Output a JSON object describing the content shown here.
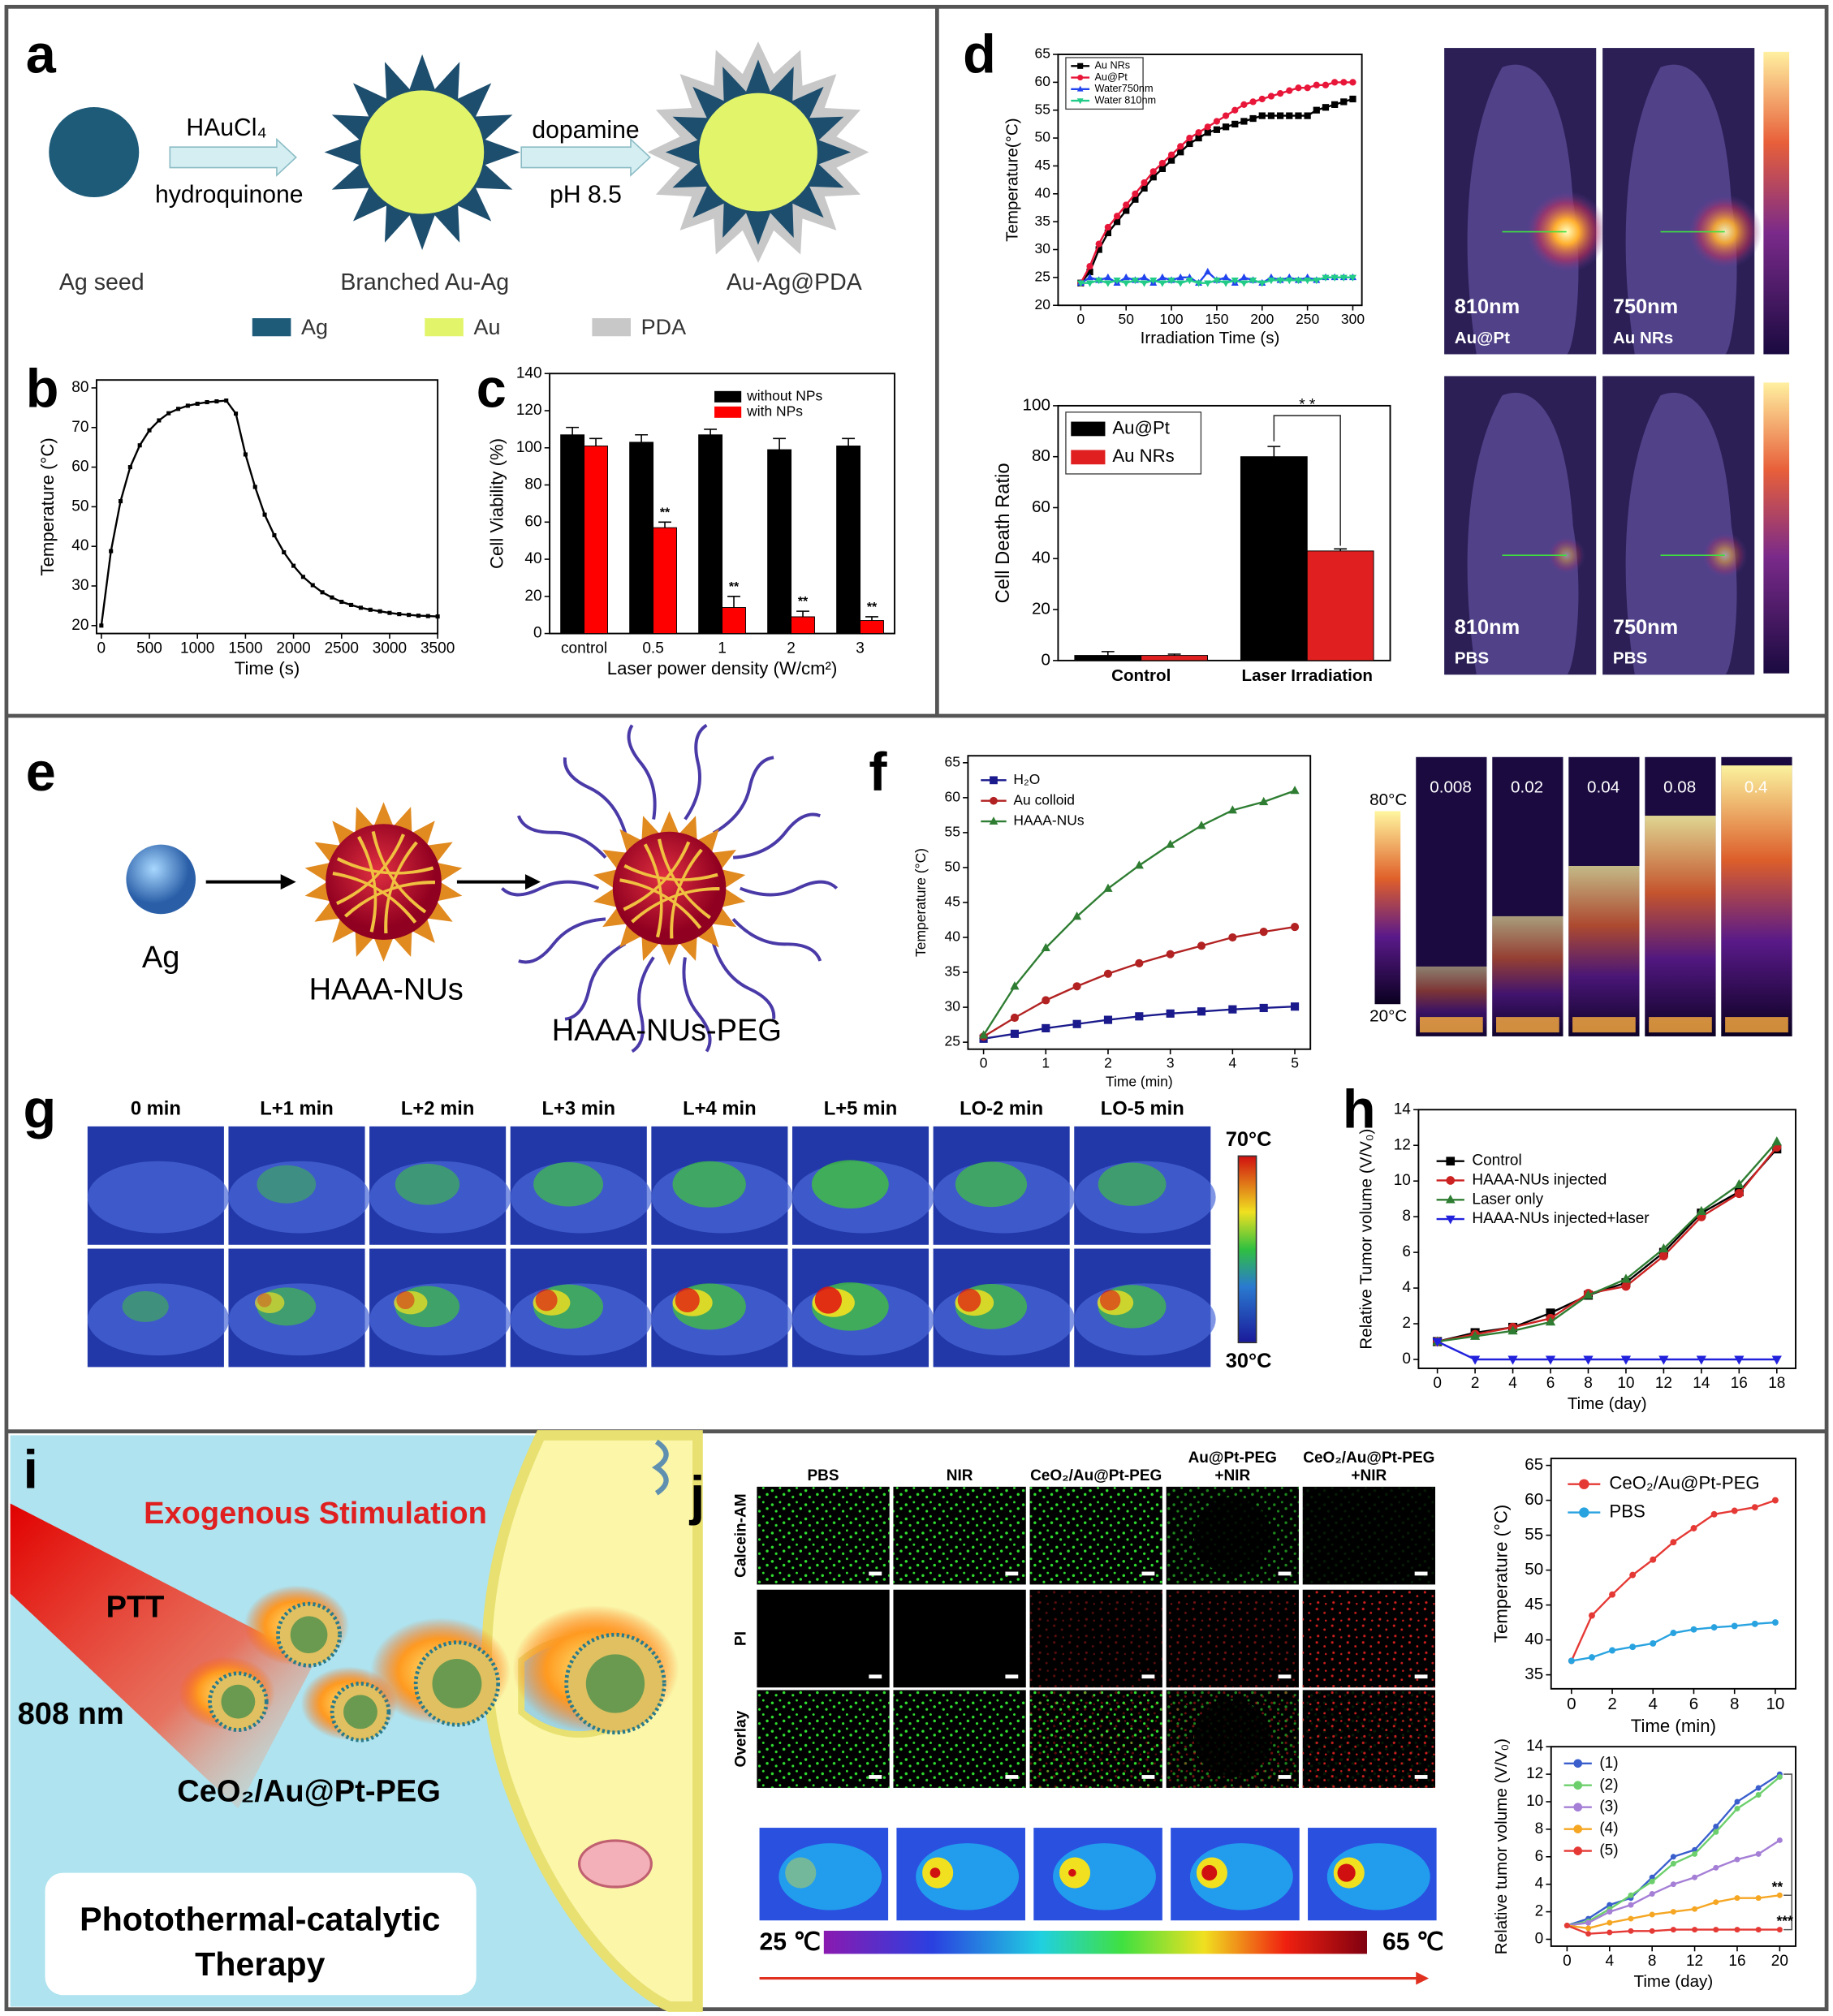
{
  "panel_labels": [
    "a",
    "b",
    "c",
    "d",
    "e",
    "f",
    "g",
    "h",
    "i",
    "j"
  ],
  "scheme_a": {
    "steps": [
      {
        "reagent": "HAuCl₄",
        "condition": "hydroquinone"
      },
      {
        "reagent": "dopamine",
        "condition": "pH 8.5"
      }
    ],
    "stages": [
      "Ag seed",
      "Branched Au-Ag",
      "Au-Ag@PDA"
    ],
    "legend": [
      "Ag",
      "Au",
      "PDA"
    ]
  },
  "scheme_e": {
    "stages": [
      "Ag",
      "HAAA-NUs",
      "HAAA-NUs-PEG"
    ]
  },
  "images_d": [
    {
      "wavelength": "810nm",
      "sample": "Au@Pt"
    },
    {
      "wavelength": "750nm",
      "sample": "Au NRs"
    },
    {
      "wavelength": "810nm",
      "sample": "PBS"
    },
    {
      "wavelength": "750nm",
      "sample": "PBS"
    }
  ],
  "images_f": {
    "concentrations": [
      "0.008",
      "0.02",
      "0.04",
      "0.08",
      "0.4"
    ],
    "scale_max": "80°C",
    "scale_min": "20°C"
  },
  "images_g": {
    "times": [
      "0 min",
      "L+1 min",
      "L+2 min",
      "L+3 min",
      "L+4 min",
      "L+5 min",
      "LO-2 min",
      "LO-5 min"
    ],
    "scale_max": "70°C",
    "scale_min": "30°C"
  },
  "scheme_i": {
    "title": "Exogenous Stimulation",
    "mode": "PTT",
    "wavelength": "808 nm",
    "agent": "CeO₂/Au@Pt-PEG",
    "caption": [
      "Photothermal-catalytic",
      "Therapy"
    ]
  },
  "images_j": {
    "groups": [
      [
        "PBS"
      ],
      [
        "NIR"
      ],
      [
        "CeO₂/Au@Pt-PEG"
      ],
      [
        "Au@Pt-PEG",
        "+NIR"
      ],
      [
        "CeO₂/Au@Pt-PEG",
        "+NIR"
      ]
    ],
    "stains": [
      "Calcein-AM",
      "PI",
      "Overlay"
    ],
    "scale_min": "25 ℃",
    "scale_max": "65 ℃"
  },
  "chart_data": [
    {
      "type": "line",
      "ylabel": "Temperature (°C)",
      "xlabel": "Time (s)",
      "x": [
        0,
        100,
        200,
        300,
        400,
        500,
        600,
        700,
        800,
        900,
        1000,
        1100,
        1200,
        1300,
        1400,
        1500,
        1600,
        1700,
        1800,
        1900,
        2000,
        2100,
        2200,
        2300,
        2400,
        2500,
        2600,
        2700,
        2800,
        2900,
        3000,
        3100,
        3200,
        3300,
        3400,
        3500
      ],
      "xlim": [
        -50,
        3500
      ],
      "xticks": [
        0,
        500,
        1000,
        1500,
        2000,
        2500,
        3000,
        3500
      ],
      "ylim": [
        18,
        82
      ],
      "yticks": [
        20,
        30,
        40,
        50,
        60,
        70,
        80
      ],
      "series": [
        {
          "color": "#000000",
          "marker": "square",
          "values": [
            20,
            38.8,
            51.4,
            60,
            65.5,
            69.3,
            71.8,
            73.6,
            74.7,
            75.5,
            76,
            76.4,
            76.6,
            76.8,
            73.5,
            63.2,
            55,
            48,
            42.8,
            38.5,
            35.1,
            32.3,
            30.2,
            28.4,
            27.1,
            26,
            25.2,
            24.5,
            24,
            23.6,
            23.2,
            22.9,
            22.7,
            22.5,
            22.4,
            22.3
          ]
        }
      ]
    },
    {
      "type": "bar",
      "ylabel": "Cell Viability (%)",
      "xlabel": "Laser power density (W/cm²)",
      "categories": [
        "control",
        "0.5",
        "1",
        "2",
        "3"
      ],
      "ylim": [
        0,
        140
      ],
      "yticks": [
        0,
        20,
        40,
        60,
        80,
        100,
        120,
        140
      ],
      "legend": "top-right",
      "series": [
        {
          "name": "without NPs",
          "color": "#000000",
          "values": [
            107,
            103,
            107,
            99,
            101
          ],
          "errors": [
            4,
            4,
            3,
            6,
            4
          ]
        },
        {
          "name": "with NPs",
          "color": "#ff0000",
          "values": [
            101,
            57,
            14,
            9,
            7
          ],
          "errors": [
            4,
            3,
            6,
            3,
            2
          ],
          "annotations": [
            null,
            "**",
            "**",
            "**",
            "**"
          ]
        }
      ]
    },
    {
      "type": "line",
      "ylabel": "Temperature(°C)",
      "xlabel": "Irradiation Time (s)",
      "x": [
        0,
        10,
        20,
        30,
        40,
        50,
        60,
        70,
        80,
        90,
        100,
        110,
        120,
        130,
        140,
        150,
        160,
        170,
        180,
        190,
        200,
        210,
        220,
        230,
        240,
        250,
        260,
        270,
        280,
        290,
        300
      ],
      "xlim": [
        -25,
        310
      ],
      "xticks": [
        0,
        50,
        100,
        150,
        200,
        250,
        300
      ],
      "ylim": [
        20,
        65
      ],
      "yticks": [
        20,
        25,
        30,
        35,
        40,
        45,
        50,
        55,
        60,
        65
      ],
      "legend": "top-left",
      "series": [
        {
          "name": "Au NRs",
          "color": "#000000",
          "marker": "square",
          "values": [
            24,
            26,
            30,
            33,
            35,
            37,
            39,
            41,
            43,
            44.5,
            46,
            47.5,
            49,
            50,
            51,
            51.5,
            52,
            52.5,
            53,
            53.5,
            54,
            54,
            54,
            54,
            54,
            54,
            55,
            55.5,
            56,
            56.5,
            57
          ]
        },
        {
          "name": "Au@Pt",
          "color": "#e8173a",
          "marker": "circle",
          "values": [
            24,
            27,
            31,
            34,
            36,
            38,
            40,
            42,
            44,
            45.5,
            47,
            48.5,
            50,
            51,
            52,
            53,
            54,
            55,
            56,
            56.5,
            57,
            57.5,
            58,
            58.5,
            59,
            59,
            59.5,
            59.5,
            60,
            60,
            60
          ]
        },
        {
          "name": "Water750nm",
          "color": "#2244ee",
          "marker": "triangle",
          "values": [
            24,
            25,
            24.5,
            25,
            24,
            25,
            24.5,
            25,
            24,
            25,
            24.5,
            25,
            25,
            24,
            26,
            24.5,
            25,
            24,
            25,
            24.5,
            24,
            25,
            24.5,
            25,
            24.5,
            25,
            24.5,
            25,
            25,
            25,
            25
          ]
        },
        {
          "name": "Water 810nm",
          "color": "#22cc88",
          "marker": "triangle-down",
          "values": [
            24,
            24,
            24.5,
            24,
            24.5,
            24,
            24.5,
            24,
            24.5,
            24,
            24.5,
            24,
            24.5,
            24,
            24,
            24.5,
            24,
            24.5,
            24,
            24.5,
            24,
            24.5,
            24.5,
            24.5,
            24.5,
            24.5,
            24.5,
            25,
            25,
            25,
            25
          ]
        }
      ]
    },
    {
      "type": "bar",
      "ylabel": "Cell Death Ratio",
      "categories": [
        "Control",
        "Laser Irradiation"
      ],
      "ylim": [
        0,
        100
      ],
      "yticks": [
        0,
        20,
        40,
        60,
        80,
        100
      ],
      "legend": "top-left",
      "series": [
        {
          "name": "Au@Pt",
          "color": "#000000",
          "values": [
            2,
            80
          ],
          "errors": [
            1.5,
            4
          ]
        },
        {
          "name": "Au NRs",
          "color": "#e02020",
          "values": [
            2,
            43
          ],
          "errors": [
            0.5,
            0.8
          ]
        }
      ],
      "annotations": [
        "* *"
      ]
    },
    {
      "type": "line",
      "ylabel": "Temperature (°C)",
      "xlabel": "Time (min)",
      "x": [
        0,
        0.5,
        1,
        1.5,
        2,
        2.5,
        3,
        3.5,
        4,
        4.5,
        5
      ],
      "xlim": [
        -0.25,
        5.25
      ],
      "xticks": [
        0,
        1,
        2,
        3,
        4,
        5
      ],
      "ylim": [
        24,
        66
      ],
      "yticks": [
        25,
        30,
        35,
        40,
        45,
        50,
        55,
        60,
        65
      ],
      "legend": "top-left",
      "series": [
        {
          "name": "H₂O",
          "color": "#1a1a8c",
          "marker": "square",
          "values": [
            25.5,
            26.2,
            27,
            27.6,
            28.2,
            28.7,
            29.1,
            29.4,
            29.7,
            29.9,
            30.1
          ]
        },
        {
          "name": "Au colloid",
          "color": "#b22222",
          "marker": "circle",
          "values": [
            25.8,
            28.5,
            31,
            33,
            34.8,
            36.3,
            37.6,
            38.8,
            40,
            40.8,
            41.5
          ]
        },
        {
          "name": "HAAA-NUs",
          "color": "#2e7d32",
          "marker": "triangle",
          "values": [
            26,
            33,
            38.5,
            43,
            47,
            50.3,
            53.3,
            56,
            58.2,
            59.4,
            61
          ]
        }
      ]
    },
    {
      "type": "line",
      "ylabel": "Relative Tumor volume (V/V₀)",
      "xlabel": "Time (day)",
      "x": [
        0,
        2,
        4,
        6,
        8,
        10,
        12,
        14,
        16,
        18
      ],
      "xlim": [
        -1,
        19
      ],
      "xticks": [
        0,
        2,
        4,
        6,
        8,
        10,
        12,
        14,
        16,
        18
      ],
      "ylim": [
        -0.5,
        14
      ],
      "yticks": [
        0,
        2,
        4,
        6,
        8,
        10,
        12,
        14
      ],
      "legend": "top-left",
      "series": [
        {
          "name": "Control",
          "color": "#000000",
          "marker": "square",
          "values": [
            1,
            1.5,
            1.8,
            2.6,
            3.6,
            4.3,
            6,
            8.2,
            9.4,
            11.8
          ]
        },
        {
          "name": "HAAA-NUs injected",
          "color": "#cc2222",
          "marker": "circle",
          "values": [
            1,
            1.4,
            1.8,
            2.3,
            3.7,
            4.1,
            5.8,
            8,
            9.3,
            11.9
          ]
        },
        {
          "name": "Laser only",
          "color": "#2e7d32",
          "marker": "triangle",
          "values": [
            1,
            1.3,
            1.6,
            2.1,
            3.6,
            4.5,
            6.2,
            8.3,
            9.8,
            12.2
          ]
        },
        {
          "name": "HAAA-NUs injected+laser",
          "color": "#2222dd",
          "marker": "triangle-down",
          "values": [
            1,
            0,
            0,
            0,
            0,
            0,
            0,
            0,
            0,
            0
          ]
        }
      ]
    },
    {
      "type": "line",
      "ylabel": "Temperature (°C)",
      "xlabel": "Time (min)",
      "x": [
        0,
        1,
        2,
        3,
        4,
        5,
        6,
        7,
        8,
        9,
        10
      ],
      "xlim": [
        -1,
        11
      ],
      "xticks": [
        0,
        2,
        4,
        6,
        8,
        10
      ],
      "ylim": [
        33,
        66
      ],
      "yticks": [
        35,
        40,
        45,
        50,
        55,
        60,
        65
      ],
      "legend": "top-left",
      "series": [
        {
          "name": "CeO₂/Au@Pt-PEG",
          "color": "#e53935",
          "marker": "circle",
          "values": [
            37,
            43.5,
            46.5,
            49.3,
            51.5,
            54,
            56,
            58,
            58.5,
            59,
            60
          ]
        },
        {
          "name": "PBS",
          "color": "#29a3e0",
          "marker": "circle",
          "values": [
            37,
            37.5,
            38.5,
            39,
            39.5,
            41,
            41.5,
            41.8,
            42,
            42.3,
            42.5
          ]
        }
      ]
    },
    {
      "type": "line",
      "ylabel": "Relative tumor volume (V/V₀)",
      "xlabel": "Time (day)",
      "x": [
        0,
        2,
        4,
        6,
        8,
        10,
        12,
        14,
        16,
        18,
        20
      ],
      "xlim": [
        -1.5,
        21.5
      ],
      "xticks": [
        0,
        4,
        8,
        12,
        16,
        20
      ],
      "ylim": [
        -0.5,
        14
      ],
      "yticks": [
        0,
        2,
        4,
        6,
        8,
        10,
        12,
        14
      ],
      "legend": "top-left",
      "series": [
        {
          "name": "(1)",
          "color": "#3a5fcd",
          "marker": "circle",
          "values": [
            1,
            1.5,
            2.5,
            3,
            4.5,
            6,
            6.5,
            8.2,
            10,
            11,
            12
          ]
        },
        {
          "name": "(2)",
          "color": "#6ccf6c",
          "marker": "circle",
          "values": [
            1,
            1.3,
            2.2,
            3.2,
            4.2,
            5.5,
            6.2,
            7.8,
            9.5,
            10.5,
            11.8
          ]
        },
        {
          "name": "(3)",
          "color": "#a57fd6",
          "marker": "circle",
          "values": [
            1,
            1.2,
            2,
            2.5,
            3.3,
            4,
            4.5,
            5.2,
            5.8,
            6.2,
            7.2
          ]
        },
        {
          "name": "(4)",
          "color": "#f5a623",
          "marker": "circle",
          "values": [
            1,
            0.8,
            1.2,
            1.5,
            1.8,
            2,
            2.2,
            2.7,
            3,
            3,
            3.2
          ]
        },
        {
          "name": "(5)",
          "color": "#e53935",
          "marker": "circle",
          "values": [
            1,
            0.4,
            0.5,
            0.6,
            0.6,
            0.7,
            0.7,
            0.7,
            0.7,
            0.7,
            0.7
          ]
        }
      ],
      "annotations": [
        "**",
        "***"
      ]
    }
  ]
}
